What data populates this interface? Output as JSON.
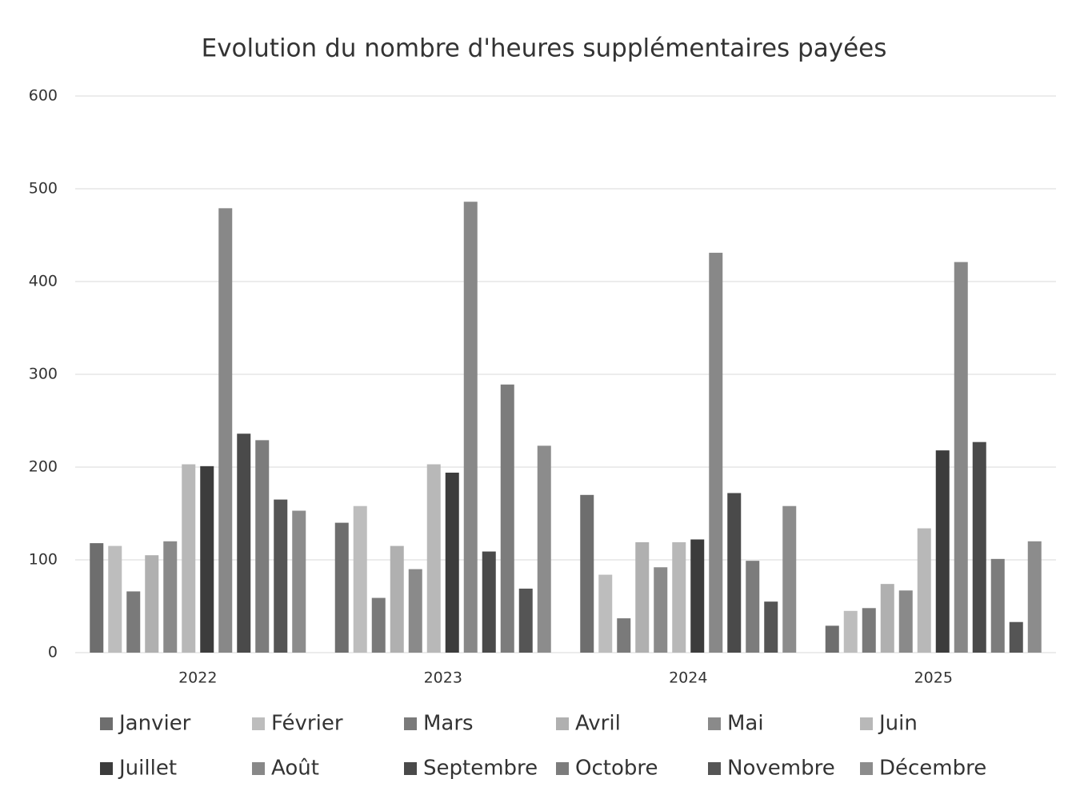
{
  "chart_data": {
    "type": "bar",
    "title": "Evolution du nombre d'heures supplémentaires payées",
    "categories": [
      "2022",
      "2023",
      "2024",
      "2025"
    ],
    "series": [
      {
        "name": "Janvier",
        "color": "#6e6e6e",
        "values": [
          118,
          140,
          170,
          29
        ]
      },
      {
        "name": "Février",
        "color": "#bdbdbd",
        "values": [
          115,
          158,
          84,
          45
        ]
      },
      {
        "name": "Mars",
        "color": "#7a7a7a",
        "values": [
          66,
          59,
          37,
          48
        ]
      },
      {
        "name": "Avril",
        "color": "#b0b0b0",
        "values": [
          105,
          115,
          119,
          74
        ]
      },
      {
        "name": "Mai",
        "color": "#8a8a8a",
        "values": [
          120,
          90,
          92,
          67
        ]
      },
      {
        "name": "Juin",
        "color": "#b8b8b8",
        "values": [
          203,
          203,
          119,
          134
        ]
      },
      {
        "name": "Juillet",
        "color": "#3c3c3c",
        "values": [
          201,
          194,
          122,
          218
        ]
      },
      {
        "name": "Août",
        "color": "#888888",
        "values": [
          479,
          486,
          431,
          421
        ]
      },
      {
        "name": "Septembre",
        "color": "#4a4a4a",
        "values": [
          236,
          109,
          172,
          227
        ]
      },
      {
        "name": "Octobre",
        "color": "#7c7c7c",
        "values": [
          229,
          289,
          99,
          101
        ]
      },
      {
        "name": "Novembre",
        "color": "#555555",
        "values": [
          165,
          69,
          55,
          33
        ]
      },
      {
        "name": "Décembre",
        "color": "#8c8c8c",
        "values": [
          153,
          223,
          158,
          120
        ]
      }
    ],
    "ylim": [
      0,
      600
    ],
    "yticks": [
      0,
      100,
      200,
      300,
      400,
      500,
      600
    ],
    "grid": true,
    "legend": "bottom"
  }
}
